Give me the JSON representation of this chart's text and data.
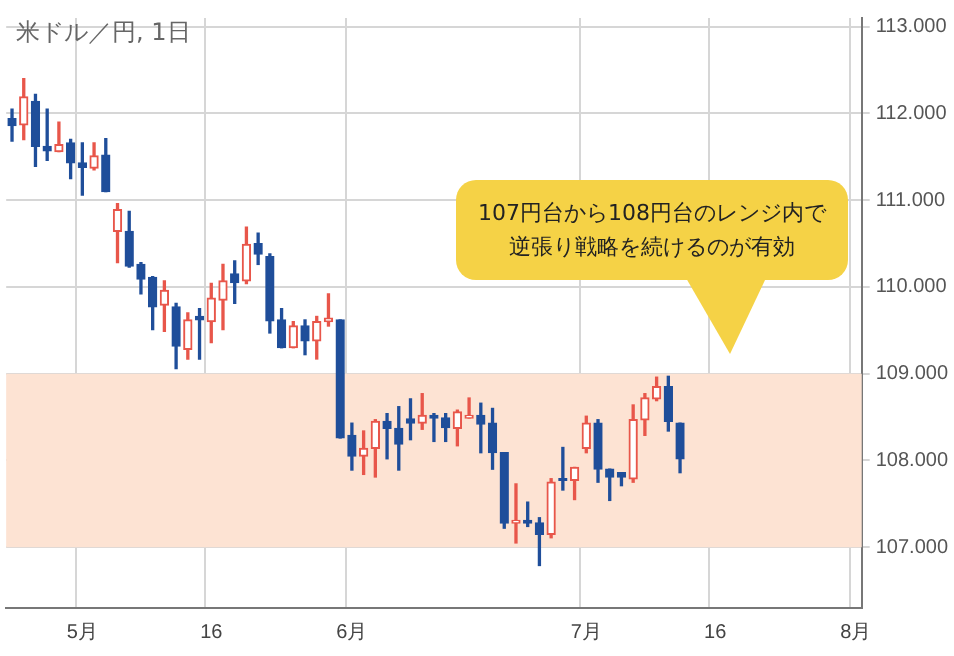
{
  "chart_data": {
    "type": "candlestick",
    "title": "米ドル／円, 1日",
    "annotations": [
      "107円台から108円台のレンジ内で逆張り戦略を続けるのが有効"
    ],
    "categories": [
      null,
      null,
      null,
      null,
      null,
      null,
      "5月",
      null,
      null,
      null,
      null,
      null,
      null,
      null,
      null,
      null,
      null,
      "16",
      null,
      null,
      null,
      null,
      null,
      null,
      null,
      null,
      null,
      null,
      null,
      "6月",
      null,
      null,
      null,
      null,
      null,
      null,
      null,
      null,
      null,
      null,
      null,
      null,
      null,
      null,
      null,
      null,
      null,
      null,
      null,
      "7月",
      null,
      null,
      null,
      null,
      null,
      null,
      null,
      null,
      null,
      null,
      "16",
      null,
      null,
      null,
      null,
      null,
      null,
      null,
      null,
      null,
      null,
      null,
      "8月"
    ],
    "ohlc": [
      [
        111.94,
        112.05,
        111.68,
        111.86
      ],
      [
        111.87,
        112.4,
        111.7,
        112.19
      ],
      [
        112.14,
        112.22,
        111.39,
        111.62
      ],
      [
        111.62,
        112.05,
        111.46,
        111.57
      ],
      [
        111.56,
        111.9,
        111.56,
        111.64
      ],
      [
        111.66,
        111.7,
        111.25,
        111.43
      ],
      [
        111.43,
        111.66,
        111.06,
        111.38
      ],
      [
        111.37,
        111.66,
        111.35,
        111.51
      ],
      [
        111.52,
        111.71,
        111.1,
        111.1
      ],
      [
        110.64,
        110.96,
        110.28,
        110.89
      ],
      [
        110.64,
        110.87,
        110.23,
        110.24
      ],
      [
        110.26,
        110.28,
        109.92,
        110.09
      ],
      [
        110.11,
        110.12,
        109.51,
        109.77
      ],
      [
        109.79,
        110.07,
        109.49,
        109.96
      ],
      [
        109.77,
        109.81,
        109.06,
        109.32
      ],
      [
        109.28,
        109.7,
        109.17,
        109.62
      ],
      [
        109.66,
        109.75,
        109.17,
        109.62
      ],
      [
        109.6,
        110.04,
        109.36,
        109.87
      ],
      [
        109.85,
        110.26,
        109.51,
        110.07
      ],
      [
        110.15,
        110.3,
        109.81,
        110.05
      ],
      [
        110.07,
        110.69,
        110.04,
        110.49
      ],
      [
        110.5,
        110.62,
        110.26,
        110.38
      ],
      [
        110.35,
        110.38,
        109.47,
        109.61
      ],
      [
        109.62,
        109.75,
        109.3,
        109.3
      ],
      [
        109.3,
        109.6,
        109.3,
        109.55
      ],
      [
        109.55,
        109.62,
        109.22,
        109.38
      ],
      [
        109.38,
        109.66,
        109.17,
        109.6
      ],
      [
        109.6,
        109.92,
        109.55,
        109.64
      ],
      [
        109.62,
        109.62,
        108.26,
        108.26
      ],
      [
        108.29,
        108.43,
        107.89,
        108.05
      ],
      [
        108.05,
        108.34,
        107.84,
        108.14
      ],
      [
        108.14,
        108.47,
        107.81,
        108.45
      ],
      [
        108.45,
        108.54,
        108.02,
        108.37
      ],
      [
        108.37,
        108.62,
        107.89,
        108.19
      ],
      [
        108.48,
        108.71,
        108.24,
        108.43
      ],
      [
        108.43,
        108.77,
        108.36,
        108.52
      ],
      [
        108.52,
        108.54,
        108.22,
        108.49
      ],
      [
        108.49,
        108.54,
        108.22,
        108.38
      ],
      [
        108.37,
        108.58,
        108.17,
        108.56
      ],
      [
        108.49,
        108.72,
        108.49,
        108.52
      ],
      [
        108.52,
        108.66,
        108.09,
        108.42
      ],
      [
        108.43,
        108.6,
        107.9,
        108.09
      ],
      [
        108.09,
        108.09,
        107.22,
        107.28
      ],
      [
        107.28,
        107.73,
        107.05,
        107.31
      ],
      [
        107.31,
        107.52,
        107.24,
        107.28
      ],
      [
        107.28,
        107.34,
        106.79,
        107.15
      ],
      [
        107.15,
        107.79,
        107.11,
        107.75
      ],
      [
        107.79,
        108.15,
        107.66,
        107.77
      ],
      [
        107.77,
        107.92,
        107.55,
        107.92
      ],
      [
        108.14,
        108.51,
        108.09,
        108.43
      ],
      [
        108.43,
        108.47,
        107.75,
        107.9
      ],
      [
        107.9,
        107.9,
        107.54,
        107.81
      ],
      [
        107.86,
        107.86,
        107.71,
        107.81
      ],
      [
        107.79,
        108.64,
        107.75,
        108.47
      ],
      [
        108.47,
        108.77,
        108.29,
        108.72
      ],
      [
        108.71,
        108.96,
        108.69,
        108.85
      ],
      [
        108.85,
        108.97,
        108.34,
        108.45
      ],
      [
        108.43,
        108.43,
        107.86,
        108.02
      ],
      null,
      null,
      null,
      null,
      null,
      null,
      null,
      null,
      null,
      null,
      null,
      null,
      null,
      null,
      null
    ],
    "colors": [
      "#1f4e9a",
      "#e8564a",
      "#1f4e9a",
      "#1f4e9a",
      "#e8564a",
      "#1f4e9a",
      "#1f4e9a",
      "#e8564a",
      "#1f4e9a",
      "#e8564a",
      "#1f4e9a",
      "#1f4e9a",
      "#1f4e9a",
      "#e8564a",
      "#1f4e9a",
      "#e8564a",
      "#1f4e9a",
      "#e8564a",
      "#e8564a",
      "#1f4e9a",
      "#e8564a",
      "#1f4e9a",
      "#1f4e9a",
      "#1f4e9a",
      "#e8564a",
      "#1f4e9a",
      "#e8564a",
      "#e8564a",
      "#1f4e9a",
      "#1f4e9a",
      "#e8564a",
      "#e8564a",
      "#1f4e9a",
      "#1f4e9a",
      "#1f4e9a",
      "#e8564a",
      "#1f4e9a",
      "#1f4e9a",
      "#e8564a",
      "#e8564a",
      "#1f4e9a",
      "#1f4e9a",
      "#1f4e9a",
      "#e8564a",
      "#1f4e9a",
      "#1f4e9a",
      "#e8564a",
      "#1f4e9a",
      "#e8564a",
      "#e8564a",
      "#1f4e9a",
      "#1f4e9a",
      "#1f4e9a",
      "#e8564a",
      "#e8564a",
      "#e8564a",
      "#1f4e9a",
      "#1f4e9a",
      null,
      null,
      null,
      null,
      null,
      null,
      null,
      null,
      null,
      null,
      null,
      null,
      null,
      null,
      null
    ],
    "ylim": [
      106.3,
      113.1
    ],
    "yticks": [
      {
        "value": 107,
        "label": "107.000"
      },
      {
        "value": 108,
        "label": "108.000"
      },
      {
        "value": 109,
        "label": "109.000"
      },
      {
        "value": 110,
        "label": "110.000"
      },
      {
        "value": 111,
        "label": "111.000"
      },
      {
        "value": 112,
        "label": "112.000"
      },
      {
        "value": 113,
        "label": "113.000"
      }
    ],
    "bands": [
      {
        "axis": "y",
        "from": 107,
        "to": 109,
        "color": "#fde3d3"
      }
    ],
    "grid": true,
    "legend": false
  }
}
